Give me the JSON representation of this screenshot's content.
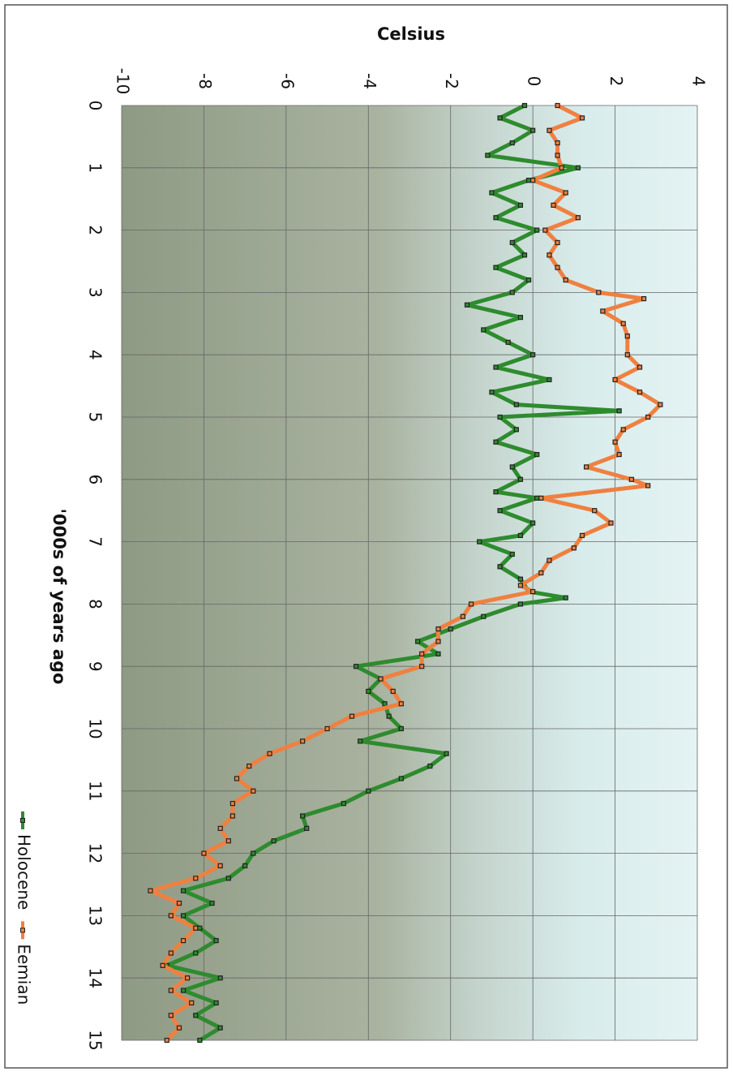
{
  "chart_data": {
    "type": "line",
    "ylabel": "Celsius",
    "xlabel": "'000s of years ago",
    "ylim": [
      -10,
      4
    ],
    "yticks": [
      -10,
      -8,
      -6,
      -4,
      -2,
      0,
      2,
      4
    ],
    "xlim": [
      0,
      15
    ],
    "xticks": [
      0,
      1,
      2,
      3,
      4,
      5,
      6,
      7,
      8,
      9,
      10,
      11,
      12,
      13,
      14,
      15
    ],
    "grid": true,
    "legend": "bottom",
    "series": [
      {
        "name": "Holocene",
        "color": "#2e8b2e",
        "x": [
          0,
          0.2,
          0.4,
          0.6,
          0.8,
          1.0,
          1.2,
          1.4,
          1.6,
          1.8,
          2.0,
          2.2,
          2.4,
          2.6,
          2.8,
          3.0,
          3.2,
          3.4,
          3.6,
          3.8,
          4.0,
          4.2,
          4.4,
          4.6,
          4.8,
          4.9,
          5.0,
          5.2,
          5.4,
          5.6,
          5.8,
          6.0,
          6.2,
          6.3,
          6.5,
          6.7,
          6.9,
          7.0,
          7.2,
          7.4,
          7.6,
          7.8,
          7.9,
          8.0,
          8.2,
          8.4,
          8.6,
          8.8,
          9.0,
          9.2,
          9.4,
          9.6,
          9.8,
          10.0,
          10.2,
          10.4,
          10.6,
          10.8,
          11.0,
          11.2,
          11.4,
          11.6,
          11.8,
          12.0,
          12.2,
          12.4,
          12.6,
          12.8,
          13.0,
          13.2,
          13.4,
          13.6,
          13.8,
          14.0,
          14.2,
          14.4,
          14.6,
          14.8,
          15.0
        ],
        "values": [
          -0.2,
          -0.8,
          0,
          -0.5,
          -1.1,
          1.1,
          -0.1,
          -1.0,
          -0.3,
          -0.9,
          0.1,
          -0.5,
          -0.2,
          -0.9,
          -0.1,
          -0.5,
          -1.6,
          -0.3,
          -1.2,
          -0.6,
          0,
          -0.9,
          0.4,
          -1.0,
          -0.4,
          2.1,
          -0.8,
          -0.4,
          -0.9,
          0.1,
          -0.5,
          -0.3,
          -0.9,
          0.1,
          -0.8,
          0,
          -0.3,
          -1.3,
          -0.5,
          -0.8,
          -0.3,
          -0.1,
          0.8,
          -0.3,
          -1.2,
          -2.0,
          -2.8,
          -2.3,
          -4.3,
          -3.7,
          -4.0,
          -3.6,
          -3.5,
          -3.2,
          -4.2,
          -2.1,
          -2.5,
          -3.2,
          -4.0,
          -4.6,
          -5.6,
          -5.5,
          -6.3,
          -6.8,
          -7.0,
          -7.4,
          -8.5,
          -7.8,
          -8.5,
          -8.1,
          -7.7,
          -8.2,
          -8.9,
          -7.6,
          -8.5,
          -7.7,
          -8.2,
          -7.6,
          -8.1
        ]
      },
      {
        "name": "Eemian",
        "color": "#f08040",
        "x": [
          0,
          0.2,
          0.4,
          0.6,
          0.8,
          1.0,
          1.2,
          1.4,
          1.6,
          1.8,
          2.0,
          2.2,
          2.4,
          2.6,
          2.8,
          3.0,
          3.1,
          3.3,
          3.5,
          3.7,
          4.0,
          4.2,
          4.4,
          4.6,
          4.8,
          5.0,
          5.2,
          5.4,
          5.6,
          5.8,
          6.0,
          6.1,
          6.3,
          6.5,
          6.7,
          6.9,
          7.1,
          7.3,
          7.5,
          7.7,
          7.8,
          8.0,
          8.2,
          8.4,
          8.6,
          8.8,
          9.0,
          9.2,
          9.4,
          9.6,
          9.8,
          10.0,
          10.2,
          10.4,
          10.6,
          10.8,
          11.0,
          11.2,
          11.4,
          11.6,
          11.8,
          12.0,
          12.2,
          12.4,
          12.6,
          12.8,
          13.0,
          13.2,
          13.4,
          13.6,
          13.8,
          14.0,
          14.2,
          14.4,
          14.6,
          14.8,
          15.0
        ],
        "values": [
          0.6,
          1.2,
          0.4,
          0.6,
          0.6,
          0.7,
          0,
          0.8,
          0.5,
          1.1,
          0.3,
          0.6,
          0.4,
          0.6,
          0.8,
          1.6,
          2.7,
          1.7,
          2.2,
          2.3,
          2.3,
          2.6,
          2.0,
          2.6,
          3.1,
          2.8,
          2.2,
          2.0,
          2.1,
          1.3,
          2.4,
          2.8,
          0.2,
          1.5,
          1.9,
          1.2,
          1.0,
          0.4,
          0.2,
          -0.3,
          0.0,
          -1.5,
          -1.7,
          -2.3,
          -2.3,
          -2.7,
          -2.7,
          -3.7,
          -3.4,
          -3.2,
          -4.4,
          -5.0,
          -5.6,
          -6.4,
          -6.9,
          -7.2,
          -6.8,
          -7.3,
          -7.3,
          -7.6,
          -7.4,
          -8.0,
          -7.6,
          -8.2,
          -9.3,
          -8.6,
          -8.8,
          -8.2,
          -8.5,
          -8.8,
          -9.0,
          -8.4,
          -8.8,
          -8.3,
          -8.8,
          -8.6,
          -8.9
        ]
      }
    ]
  }
}
